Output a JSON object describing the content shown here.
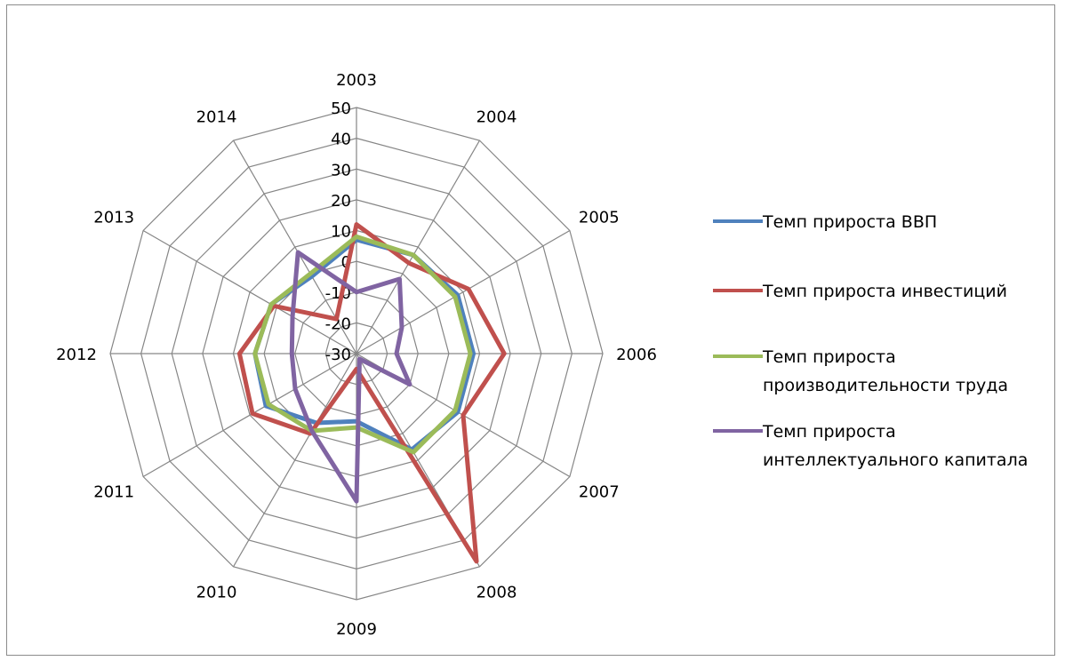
{
  "chart_data": {
    "type": "radar",
    "categories": [
      "2003",
      "2004",
      "2005",
      "2006",
      "2007",
      "2008",
      "2009",
      "2010",
      "2011",
      "2012",
      "2013",
      "2014"
    ],
    "radial_ticks": [
      50,
      40,
      30,
      20,
      10,
      0,
      -10,
      -20,
      -30
    ],
    "rlim": [
      -30,
      50
    ],
    "grid": true,
    "legend_position": "right",
    "series": [
      {
        "name": "Темп прироста ВВП",
        "color": "#4f81bd",
        "values": [
          7,
          7,
          8,
          8,
          8,
          6,
          -8,
          -4,
          4,
          3,
          2,
          -1
        ]
      },
      {
        "name": "Темп прироста инвестиций",
        "color": "#c0504d",
        "values": [
          12,
          4,
          12,
          18,
          10,
          48,
          -25,
          0,
          9,
          8,
          1,
          -17
        ]
      },
      {
        "name": "Темп прироста производительности труда",
        "color": "#9bbb59",
        "values": [
          8,
          7,
          7,
          7,
          7,
          7,
          -6,
          -1,
          3,
          3,
          2,
          0
        ]
      },
      {
        "name": "Темп прироста интеллектуального капитала",
        "color": "#8064a2",
        "values": [
          -10,
          -2,
          -13,
          -17,
          -10,
          -28,
          18,
          -1,
          -7,
          -9,
          -6,
          8
        ]
      }
    ]
  }
}
